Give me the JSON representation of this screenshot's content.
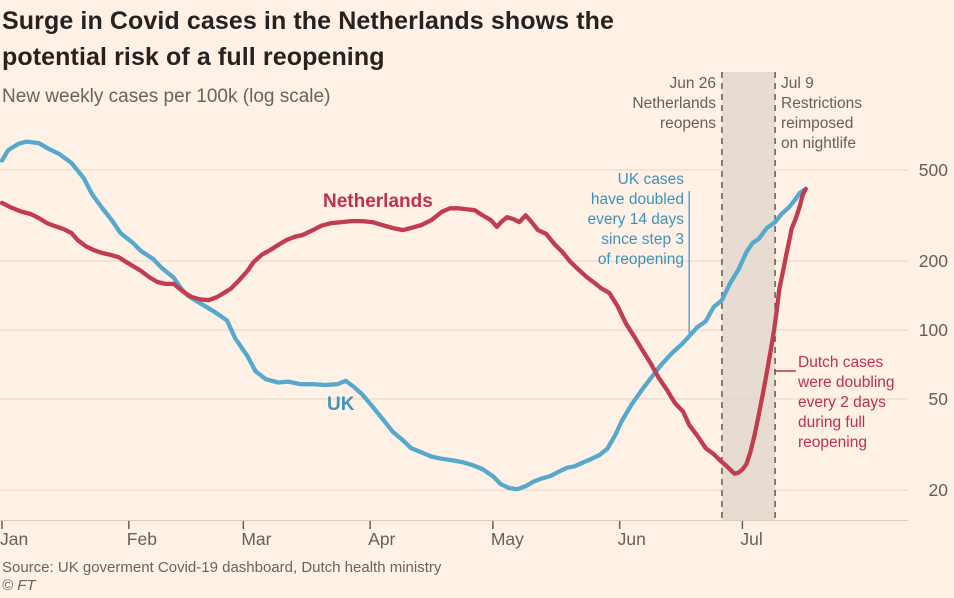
{
  "header": {
    "title": "Surge in Covid cases in the Netherlands shows the potential risk of a full reopening",
    "subtitle": "New weekly cases per 100k (log scale)"
  },
  "footer": {
    "source": "Source: UK goverment Covid-19 dashboard, Dutch health ministry",
    "copyright": "© FT"
  },
  "colors": {
    "background": "#FFF1E5",
    "netherlands_line": "#c23c50",
    "uk_line": "#57a8cd",
    "netherlands_text": "#bf304a",
    "uk_text": "#3e92ba",
    "band_fill": "#e8dcd2",
    "dashed_line": "#57504a",
    "gridline": "#e7d5c5",
    "axis_text": "#66605b"
  },
  "chart_data": {
    "type": "line",
    "title": "Surge in Covid cases in the Netherlands shows the potential risk of a full reopening",
    "ylabel": "New weekly cases per 100k (log scale)",
    "y_scale": "log",
    "ylim": [
      15,
      700
    ],
    "y_ticks": [
      500,
      200,
      100,
      50,
      20
    ],
    "x_tick_labels": [
      "Jan",
      "Feb",
      "Mar",
      "Apr",
      "May",
      "Jun",
      "Jul"
    ],
    "x_tick_days": [
      0,
      31,
      59,
      90,
      120,
      151,
      181
    ],
    "x_unit": "days since Jan 1 2021",
    "grid": "horizontal",
    "legend_position": "inline-labels",
    "series": [
      {
        "name": "UK",
        "color": "#57a8cd",
        "points": [
          [
            0,
            550
          ],
          [
            1.5,
            610
          ],
          [
            4,
            650
          ],
          [
            6,
            665
          ],
          [
            9,
            655
          ],
          [
            11,
            624
          ],
          [
            14,
            587
          ],
          [
            17,
            536
          ],
          [
            20,
            460
          ],
          [
            22,
            392
          ],
          [
            24.5,
            341
          ],
          [
            27,
            299
          ],
          [
            29,
            265
          ],
          [
            32,
            240
          ],
          [
            34,
            221
          ],
          [
            37,
            204
          ],
          [
            39,
            187
          ],
          [
            42,
            169
          ],
          [
            44,
            150
          ],
          [
            45.5,
            141
          ],
          [
            47.5,
            134
          ],
          [
            50,
            126
          ],
          [
            52,
            120
          ],
          [
            55,
            110
          ],
          [
            57,
            92
          ],
          [
            60,
            77
          ],
          [
            62,
            66
          ],
          [
            64.5,
            61
          ],
          [
            67.5,
            59
          ],
          [
            70,
            59.5
          ],
          [
            73,
            58
          ],
          [
            76,
            58
          ],
          [
            79,
            57.5
          ],
          [
            82,
            58
          ],
          [
            84,
            60
          ],
          [
            86,
            56.5
          ],
          [
            88,
            52.5
          ],
          [
            90.5,
            46.5
          ],
          [
            93,
            41
          ],
          [
            95.5,
            36
          ],
          [
            98,
            33
          ],
          [
            100,
            30.5
          ],
          [
            103,
            29
          ],
          [
            105,
            28
          ],
          [
            107.5,
            27.4
          ],
          [
            110,
            27
          ],
          [
            112.5,
            26.5
          ],
          [
            115,
            25.7
          ],
          [
            117.5,
            24.7
          ],
          [
            120,
            23
          ],
          [
            122,
            21.2
          ],
          [
            124,
            20.4
          ],
          [
            126,
            20.2
          ],
          [
            128,
            20.8
          ],
          [
            130,
            21.8
          ],
          [
            132,
            22.5
          ],
          [
            134,
            23
          ],
          [
            136,
            24
          ],
          [
            138,
            25
          ],
          [
            140,
            25.4
          ],
          [
            142,
            26.4
          ],
          [
            144,
            27.3
          ],
          [
            146,
            28.4
          ],
          [
            148,
            30.3
          ],
          [
            150,
            35
          ],
          [
            151.5,
            40
          ],
          [
            154,
            47.5
          ],
          [
            156.5,
            55
          ],
          [
            159,
            63
          ],
          [
            161,
            70
          ],
          [
            164,
            80
          ],
          [
            166,
            86
          ],
          [
            168,
            94
          ],
          [
            170,
            103
          ],
          [
            172,
            109
          ],
          [
            174,
            126
          ],
          [
            176,
            135
          ],
          [
            178,
            160
          ],
          [
            180,
            183
          ],
          [
            182,
            219
          ],
          [
            183.5,
            240
          ],
          [
            185,
            250
          ],
          [
            187,
            279
          ],
          [
            189,
            296
          ],
          [
            190.5,
            320
          ],
          [
            192.5,
            345
          ],
          [
            194,
            373
          ],
          [
            195,
            396
          ],
          [
            196,
            408
          ]
        ]
      },
      {
        "name": "Netherlands",
        "color": "#c23c50",
        "points": [
          [
            0,
            359
          ],
          [
            2,
            344
          ],
          [
            4.5,
            330
          ],
          [
            7,
            321
          ],
          [
            9,
            308
          ],
          [
            11,
            293
          ],
          [
            13,
            284
          ],
          [
            15,
            276
          ],
          [
            17,
            265
          ],
          [
            18.5,
            247
          ],
          [
            20.5,
            232
          ],
          [
            22.5,
            223
          ],
          [
            24.5,
            217
          ],
          [
            26.5,
            213
          ],
          [
            28.5,
            208
          ],
          [
            30,
            200
          ],
          [
            32.5,
            188
          ],
          [
            34,
            181
          ],
          [
            36,
            170
          ],
          [
            38,
            162
          ],
          [
            40,
            159
          ],
          [
            42,
            159
          ],
          [
            43.5,
            151
          ],
          [
            45,
            144
          ],
          [
            46.5,
            139
          ],
          [
            48.5,
            136
          ],
          [
            50.5,
            135
          ],
          [
            52.5,
            139
          ],
          [
            54.5,
            146
          ],
          [
            56,
            152
          ],
          [
            58,
            165
          ],
          [
            60,
            181
          ],
          [
            61.5,
            198
          ],
          [
            63.5,
            213
          ],
          [
            65.5,
            223
          ],
          [
            67.5,
            235
          ],
          [
            69.5,
            247
          ],
          [
            71.5,
            255
          ],
          [
            73.5,
            260
          ],
          [
            76,
            273
          ],
          [
            78,
            285
          ],
          [
            80.5,
            293
          ],
          [
            83,
            296
          ],
          [
            85.5,
            299
          ],
          [
            88,
            299
          ],
          [
            90.5,
            296
          ],
          [
            93,
            287
          ],
          [
            95.5,
            279
          ],
          [
            98,
            273
          ],
          [
            100,
            279
          ],
          [
            102.5,
            287
          ],
          [
            105,
            302
          ],
          [
            107.5,
            328
          ],
          [
            109.5,
            340
          ],
          [
            111.5,
            340
          ],
          [
            113.5,
            337
          ],
          [
            115.5,
            334
          ],
          [
            117.5,
            317
          ],
          [
            119.5,
            302
          ],
          [
            121,
            282
          ],
          [
            122,
            296
          ],
          [
            123.5,
            311
          ],
          [
            125,
            305
          ],
          [
            126.5,
            296
          ],
          [
            128,
            317
          ],
          [
            129.5,
            296
          ],
          [
            131,
            273
          ],
          [
            133,
            263
          ],
          [
            135,
            238
          ],
          [
            137,
            219
          ],
          [
            139,
            198
          ],
          [
            141,
            183
          ],
          [
            143,
            170
          ],
          [
            145,
            160
          ],
          [
            146.5,
            152
          ],
          [
            148.5,
            145
          ],
          [
            150.5,
            127
          ],
          [
            152.5,
            107
          ],
          [
            154.5,
            94
          ],
          [
            156.5,
            82
          ],
          [
            158.5,
            72
          ],
          [
            160.5,
            62
          ],
          [
            162.5,
            55
          ],
          [
            164.5,
            48
          ],
          [
            166.5,
            44
          ],
          [
            168,
            38.5
          ],
          [
            170,
            34.5
          ],
          [
            172,
            30.5
          ],
          [
            174,
            28.7
          ],
          [
            175.5,
            27
          ],
          [
            177,
            25.6
          ],
          [
            178,
            24.6
          ],
          [
            179,
            23.6
          ],
          [
            180,
            23.8
          ],
          [
            181,
            24.6
          ],
          [
            182,
            26
          ],
          [
            183,
            29.5
          ],
          [
            184,
            35
          ],
          [
            185,
            42.5
          ],
          [
            186,
            52.5
          ],
          [
            187,
            65.5
          ],
          [
            188,
            83
          ],
          [
            188.75,
            100
          ],
          [
            189.5,
            125
          ],
          [
            190,
            150
          ],
          [
            191,
            183
          ],
          [
            191.75,
            215
          ],
          [
            192.5,
            247
          ],
          [
            193,
            276
          ],
          [
            194,
            305
          ],
          [
            195,
            345
          ],
          [
            195.75,
            389
          ],
          [
            196.5,
            413
          ]
        ]
      }
    ],
    "events": [
      {
        "day": 176,
        "text": "Jun 26\nNetherlands\nreopens"
      },
      {
        "day": 189,
        "text": "Jul 9\nRestrictions\nreimposed\non nightlife"
      }
    ],
    "annotations": [
      {
        "id": "uk-doubling",
        "text": "UK cases\nhave doubled\nevery 14 days\nsince step 3\nof reopening"
      },
      {
        "id": "dutch-doubling",
        "text": "Dutch cases\nwere doubling\nevery 2 days\nduring full\nreopening"
      }
    ],
    "shaded_band": {
      "from_day": 176,
      "to_day": 189
    }
  }
}
